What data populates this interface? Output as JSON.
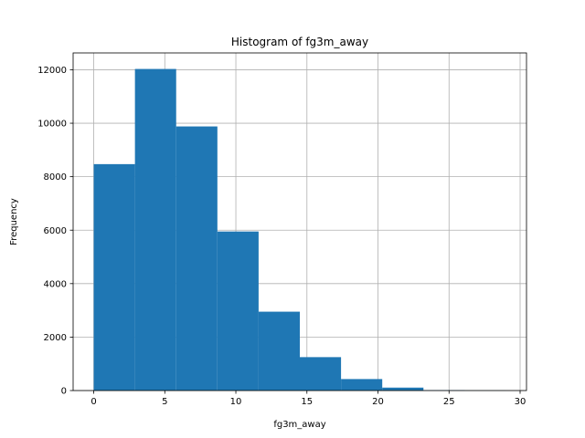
{
  "chart_data": {
    "type": "bar",
    "subtype": "histogram",
    "title": "Histogram of fg3m_away",
    "xlabel": "fg3m_away",
    "ylabel": "Frequency",
    "bin_edges": [
      0,
      2.9,
      5.8,
      8.7,
      11.6,
      14.5,
      17.4,
      20.3,
      23.2,
      26.1,
      29
    ],
    "values": [
      8470,
      12030,
      9880,
      5950,
      2950,
      1250,
      430,
      110,
      15,
      5
    ],
    "xlim": [
      -1.45,
      30.45
    ],
    "ylim": [
      0,
      12630
    ],
    "xticks": [
      0,
      5,
      10,
      15,
      20,
      25,
      30
    ],
    "xtick_labels": [
      "0",
      "5",
      "10",
      "15",
      "20",
      "25",
      "30"
    ],
    "yticks": [
      0,
      2000,
      4000,
      6000,
      8000,
      10000,
      12000
    ],
    "ytick_labels": [
      "0",
      "2000",
      "4000",
      "6000",
      "8000",
      "10000",
      "12000"
    ],
    "grid": true,
    "bar_color": "#1f77b4",
    "grid_color": "#b0b0b0",
    "axis_color": "#000000"
  }
}
